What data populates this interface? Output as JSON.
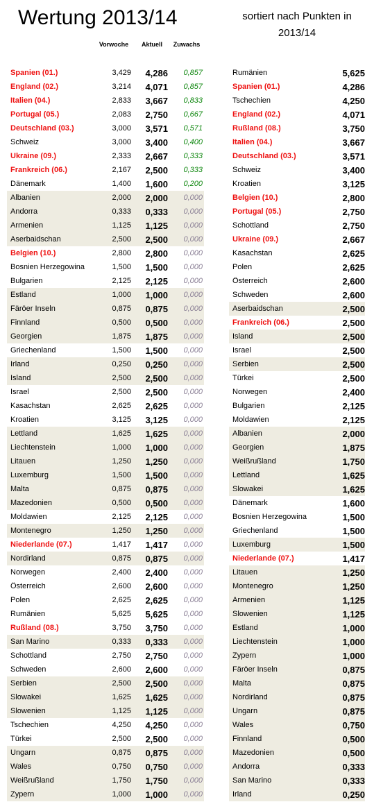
{
  "title": "Wertung 2013/14",
  "subtitle": "sortiert nach Punkten in 2013/14",
  "headers": {
    "prev": "Vorwoche",
    "current": "Aktuell",
    "gain": "Zuwachs"
  },
  "colors": {
    "highlight": "#ee1111",
    "positive_gain": "#118811",
    "zero_gain": "#8a7f95",
    "band": "#eeece1"
  },
  "left_table": [
    {
      "name": "Spanien (01.)",
      "prev": "3,429",
      "current": "4,286",
      "gain": "0,857",
      "highlight": true,
      "band": false
    },
    {
      "name": "England (02.)",
      "prev": "3,214",
      "current": "4,071",
      "gain": "0,857",
      "highlight": true,
      "band": false
    },
    {
      "name": "Italien (04.)",
      "prev": "2,833",
      "current": "3,667",
      "gain": "0,833",
      "highlight": true,
      "band": false
    },
    {
      "name": "Portugal (05.)",
      "prev": "2,083",
      "current": "2,750",
      "gain": "0,667",
      "highlight": true,
      "band": false
    },
    {
      "name": "Deutschland (03.)",
      "prev": "3,000",
      "current": "3,571",
      "gain": "0,571",
      "highlight": true,
      "band": false
    },
    {
      "name": "Schweiz",
      "prev": "3,000",
      "current": "3,400",
      "gain": "0,400",
      "highlight": false,
      "band": false
    },
    {
      "name": "Ukraine (09.)",
      "prev": "2,333",
      "current": "2,667",
      "gain": "0,333",
      "highlight": true,
      "band": false
    },
    {
      "name": "Frankreich (06.)",
      "prev": "2,167",
      "current": "2,500",
      "gain": "0,333",
      "highlight": true,
      "band": false
    },
    {
      "name": "Dänemark",
      "prev": "1,400",
      "current": "1,600",
      "gain": "0,200",
      "highlight": false,
      "band": false
    },
    {
      "name": "Albanien",
      "prev": "2,000",
      "current": "2,000",
      "gain": "0,000",
      "highlight": false,
      "band": true
    },
    {
      "name": "Andorra",
      "prev": "0,333",
      "current": "0,333",
      "gain": "0,000",
      "highlight": false,
      "band": true
    },
    {
      "name": "Armenien",
      "prev": "1,125",
      "current": "1,125",
      "gain": "0,000",
      "highlight": false,
      "band": true
    },
    {
      "name": "Aserbaidschan",
      "prev": "2,500",
      "current": "2,500",
      "gain": "0,000",
      "highlight": false,
      "band": true
    },
    {
      "name": "Belgien (10.)",
      "prev": "2,800",
      "current": "2,800",
      "gain": "0,000",
      "highlight": true,
      "band": false
    },
    {
      "name": "Bosnien Herzegowina",
      "prev": "1,500",
      "current": "1,500",
      "gain": "0,000",
      "highlight": false,
      "band": false
    },
    {
      "name": "Bulgarien",
      "prev": "2,125",
      "current": "2,125",
      "gain": "0,000",
      "highlight": false,
      "band": false
    },
    {
      "name": "Estland",
      "prev": "1,000",
      "current": "1,000",
      "gain": "0,000",
      "highlight": false,
      "band": true
    },
    {
      "name": "Färöer Inseln",
      "prev": "0,875",
      "current": "0,875",
      "gain": "0,000",
      "highlight": false,
      "band": true
    },
    {
      "name": "Finnland",
      "prev": "0,500",
      "current": "0,500",
      "gain": "0,000",
      "highlight": false,
      "band": true
    },
    {
      "name": "Georgien",
      "prev": "1,875",
      "current": "1,875",
      "gain": "0,000",
      "highlight": false,
      "band": true
    },
    {
      "name": "Griechenland",
      "prev": "1,500",
      "current": "1,500",
      "gain": "0,000",
      "highlight": false,
      "band": false
    },
    {
      "name": "Irland",
      "prev": "0,250",
      "current": "0,250",
      "gain": "0,000",
      "highlight": false,
      "band": true
    },
    {
      "name": "Island",
      "prev": "2,500",
      "current": "2,500",
      "gain": "0,000",
      "highlight": false,
      "band": true
    },
    {
      "name": "Israel",
      "prev": "2,500",
      "current": "2,500",
      "gain": "0,000",
      "highlight": false,
      "band": false
    },
    {
      "name": "Kasachstan",
      "prev": "2,625",
      "current": "2,625",
      "gain": "0,000",
      "highlight": false,
      "band": false
    },
    {
      "name": "Kroatien",
      "prev": "3,125",
      "current": "3,125",
      "gain": "0,000",
      "highlight": false,
      "band": false
    },
    {
      "name": "Lettland",
      "prev": "1,625",
      "current": "1,625",
      "gain": "0,000",
      "highlight": false,
      "band": true
    },
    {
      "name": "Liechtenstein",
      "prev": "1,000",
      "current": "1,000",
      "gain": "0,000",
      "highlight": false,
      "band": true
    },
    {
      "name": "Litauen",
      "prev": "1,250",
      "current": "1,250",
      "gain": "0,000",
      "highlight": false,
      "band": true
    },
    {
      "name": "Luxemburg",
      "prev": "1,500",
      "current": "1,500",
      "gain": "0,000",
      "highlight": false,
      "band": true
    },
    {
      "name": "Malta",
      "prev": "0,875",
      "current": "0,875",
      "gain": "0,000",
      "highlight": false,
      "band": true
    },
    {
      "name": "Mazedonien",
      "prev": "0,500",
      "current": "0,500",
      "gain": "0,000",
      "highlight": false,
      "band": true
    },
    {
      "name": "Moldawien",
      "prev": "2,125",
      "current": "2,125",
      "gain": "0,000",
      "highlight": false,
      "band": false
    },
    {
      "name": "Montenegro",
      "prev": "1,250",
      "current": "1,250",
      "gain": "0,000",
      "highlight": false,
      "band": true
    },
    {
      "name": "Niederlande (07.)",
      "prev": "1,417",
      "current": "1,417",
      "gain": "0,000",
      "highlight": true,
      "band": false
    },
    {
      "name": "Nordirland",
      "prev": "0,875",
      "current": "0,875",
      "gain": "0,000",
      "highlight": false,
      "band": true
    },
    {
      "name": "Norwegen",
      "prev": "2,400",
      "current": "2,400",
      "gain": "0,000",
      "highlight": false,
      "band": false
    },
    {
      "name": "Österreich",
      "prev": "2,600",
      "current": "2,600",
      "gain": "0,000",
      "highlight": false,
      "band": false
    },
    {
      "name": "Polen",
      "prev": "2,625",
      "current": "2,625",
      "gain": "0,000",
      "highlight": false,
      "band": false
    },
    {
      "name": "Rumänien",
      "prev": "5,625",
      "current": "5,625",
      "gain": "0,000",
      "highlight": false,
      "band": false
    },
    {
      "name": "Rußland (08.)",
      "prev": "3,750",
      "current": "3,750",
      "gain": "0,000",
      "highlight": true,
      "band": false
    },
    {
      "name": "San Marino",
      "prev": "0,333",
      "current": "0,333",
      "gain": "0,000",
      "highlight": false,
      "band": true
    },
    {
      "name": "Schottland",
      "prev": "2,750",
      "current": "2,750",
      "gain": "0,000",
      "highlight": false,
      "band": false
    },
    {
      "name": "Schweden",
      "prev": "2,600",
      "current": "2,600",
      "gain": "0,000",
      "highlight": false,
      "band": false
    },
    {
      "name": "Serbien",
      "prev": "2,500",
      "current": "2,500",
      "gain": "0,000",
      "highlight": false,
      "band": true
    },
    {
      "name": "Slowakei",
      "prev": "1,625",
      "current": "1,625",
      "gain": "0,000",
      "highlight": false,
      "band": true
    },
    {
      "name": "Slowenien",
      "prev": "1,125",
      "current": "1,125",
      "gain": "0,000",
      "highlight": false,
      "band": true
    },
    {
      "name": "Tschechien",
      "prev": "4,250",
      "current": "4,250",
      "gain": "0,000",
      "highlight": false,
      "band": false
    },
    {
      "name": "Türkei",
      "prev": "2,500",
      "current": "2,500",
      "gain": "0,000",
      "highlight": false,
      "band": false
    },
    {
      "name": "Ungarn",
      "prev": "0,875",
      "current": "0,875",
      "gain": "0,000",
      "highlight": false,
      "band": true
    },
    {
      "name": "Wales",
      "prev": "0,750",
      "current": "0,750",
      "gain": "0,000",
      "highlight": false,
      "band": true
    },
    {
      "name": "Weißrußland",
      "prev": "1,750",
      "current": "1,750",
      "gain": "0,000",
      "highlight": false,
      "band": true
    },
    {
      "name": "Zypern",
      "prev": "1,000",
      "current": "1,000",
      "gain": "0,000",
      "highlight": false,
      "band": true
    }
  ],
  "right_table": [
    {
      "name": "Rumänien",
      "current": "5,625",
      "highlight": false,
      "band": false
    },
    {
      "name": "Spanien (01.)",
      "current": "4,286",
      "highlight": true,
      "band": false
    },
    {
      "name": "Tschechien",
      "current": "4,250",
      "highlight": false,
      "band": false
    },
    {
      "name": "England (02.)",
      "current": "4,071",
      "highlight": true,
      "band": false
    },
    {
      "name": "Rußland (08.)",
      "current": "3,750",
      "highlight": true,
      "band": false
    },
    {
      "name": "Italien (04.)",
      "current": "3,667",
      "highlight": true,
      "band": false
    },
    {
      "name": "Deutschland (03.)",
      "current": "3,571",
      "highlight": true,
      "band": false
    },
    {
      "name": "Schweiz",
      "current": "3,400",
      "highlight": false,
      "band": false
    },
    {
      "name": "Kroatien",
      "current": "3,125",
      "highlight": false,
      "band": false
    },
    {
      "name": "Belgien (10.)",
      "current": "2,800",
      "highlight": true,
      "band": false
    },
    {
      "name": "Portugal (05.)",
      "current": "2,750",
      "highlight": true,
      "band": false
    },
    {
      "name": "Schottland",
      "current": "2,750",
      "highlight": false,
      "band": false
    },
    {
      "name": "Ukraine (09.)",
      "current": "2,667",
      "highlight": true,
      "band": false
    },
    {
      "name": "Kasachstan",
      "current": "2,625",
      "highlight": false,
      "band": false
    },
    {
      "name": "Polen",
      "current": "2,625",
      "highlight": false,
      "band": false
    },
    {
      "name": "Österreich",
      "current": "2,600",
      "highlight": false,
      "band": false
    },
    {
      "name": "Schweden",
      "current": "2,600",
      "highlight": false,
      "band": false
    },
    {
      "name": "Aserbaidschan",
      "current": "2,500",
      "highlight": false,
      "band": true
    },
    {
      "name": "Frankreich (06.)",
      "current": "2,500",
      "highlight": true,
      "band": false
    },
    {
      "name": "Island",
      "current": "2,500",
      "highlight": false,
      "band": true
    },
    {
      "name": "Israel",
      "current": "2,500",
      "highlight": false,
      "band": false
    },
    {
      "name": "Serbien",
      "current": "2,500",
      "highlight": false,
      "band": true
    },
    {
      "name": "Türkei",
      "current": "2,500",
      "highlight": false,
      "band": false
    },
    {
      "name": "Norwegen",
      "current": "2,400",
      "highlight": false,
      "band": false
    },
    {
      "name": "Bulgarien",
      "current": "2,125",
      "highlight": false,
      "band": false
    },
    {
      "name": "Moldawien",
      "current": "2,125",
      "highlight": false,
      "band": false
    },
    {
      "name": "Albanien",
      "current": "2,000",
      "highlight": false,
      "band": true
    },
    {
      "name": "Georgien",
      "current": "1,875",
      "highlight": false,
      "band": true
    },
    {
      "name": "Weißrußland",
      "current": "1,750",
      "highlight": false,
      "band": true
    },
    {
      "name": "Lettland",
      "current": "1,625",
      "highlight": false,
      "band": true
    },
    {
      "name": "Slowakei",
      "current": "1,625",
      "highlight": false,
      "band": true
    },
    {
      "name": "Dänemark",
      "current": "1,600",
      "highlight": false,
      "band": false
    },
    {
      "name": "Bosnien Herzegowina",
      "current": "1,500",
      "highlight": false,
      "band": false
    },
    {
      "name": "Griechenland",
      "current": "1,500",
      "highlight": false,
      "band": false
    },
    {
      "name": "Luxemburg",
      "current": "1,500",
      "highlight": false,
      "band": true
    },
    {
      "name": "Niederlande (07.)",
      "current": "1,417",
      "highlight": true,
      "band": false
    },
    {
      "name": "Litauen",
      "current": "1,250",
      "highlight": false,
      "band": true
    },
    {
      "name": "Montenegro",
      "current": "1,250",
      "highlight": false,
      "band": true
    },
    {
      "name": "Armenien",
      "current": "1,125",
      "highlight": false,
      "band": true
    },
    {
      "name": "Slowenien",
      "current": "1,125",
      "highlight": false,
      "band": true
    },
    {
      "name": "Estland",
      "current": "1,000",
      "highlight": false,
      "band": true
    },
    {
      "name": "Liechtenstein",
      "current": "1,000",
      "highlight": false,
      "band": true
    },
    {
      "name": "Zypern",
      "current": "1,000",
      "highlight": false,
      "band": true
    },
    {
      "name": "Färöer Inseln",
      "current": "0,875",
      "highlight": false,
      "band": true
    },
    {
      "name": "Malta",
      "current": "0,875",
      "highlight": false,
      "band": true
    },
    {
      "name": "Nordirland",
      "current": "0,875",
      "highlight": false,
      "band": true
    },
    {
      "name": "Ungarn",
      "current": "0,875",
      "highlight": false,
      "band": true
    },
    {
      "name": "Wales",
      "current": "0,750",
      "highlight": false,
      "band": true
    },
    {
      "name": "Finnland",
      "current": "0,500",
      "highlight": false,
      "band": true
    },
    {
      "name": "Mazedonien",
      "current": "0,500",
      "highlight": false,
      "band": true
    },
    {
      "name": "Andorra",
      "current": "0,333",
      "highlight": false,
      "band": true
    },
    {
      "name": "San Marino",
      "current": "0,333",
      "highlight": false,
      "band": true
    },
    {
      "name": "Irland",
      "current": "0,250",
      "highlight": false,
      "band": true
    }
  ]
}
